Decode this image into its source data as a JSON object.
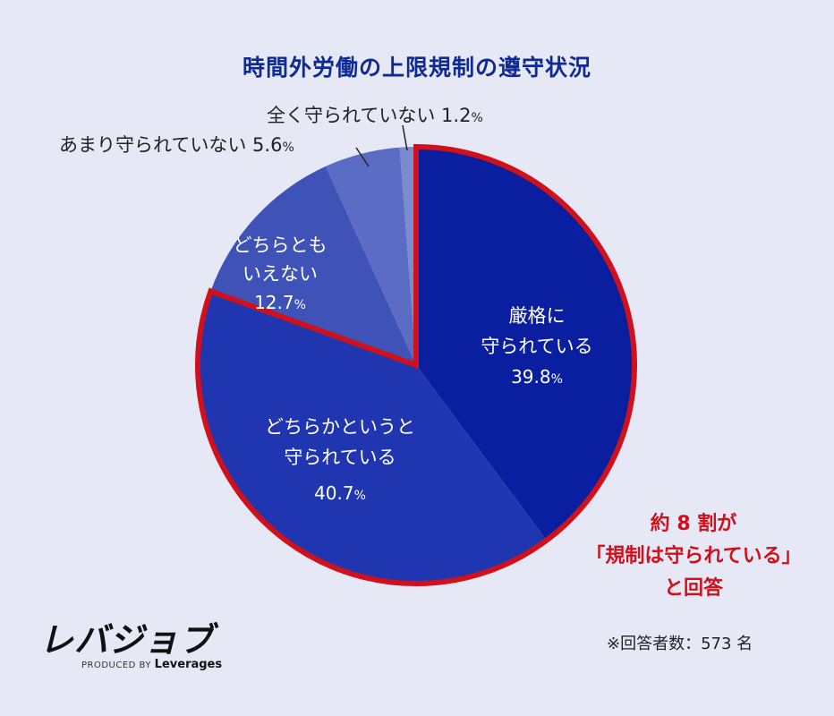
{
  "title": "時間外労働の上限規制の遵守状況",
  "chart_data": {
    "type": "pie",
    "title": "時間外労働の上限規制の遵守状況",
    "categories": [
      "厳格に守られている",
      "どちらかというと守られている",
      "どちらともいえない",
      "あまり守られていない",
      "全く守られていない"
    ],
    "values": [
      39.8,
      40.7,
      12.7,
      5.6,
      1.2
    ],
    "unit": "%",
    "colors": [
      "#0a1fa0",
      "#2036b0",
      "#3f52b8",
      "#5a6cc4",
      "#7b8bd0"
    ],
    "highlight": {
      "slices": [
        0,
        1
      ],
      "outline_color": "#d0101a"
    },
    "start_angle": "12 o'clock, clockwise",
    "respondents": 573
  },
  "labels": {
    "strict": {
      "line1": "厳格に",
      "line2": "守られている",
      "pct": "39.8"
    },
    "somewhat": {
      "line1": "どちらかというと",
      "line2": "守られている",
      "pct": "40.7"
    },
    "neither": {
      "line1": "どちらとも",
      "line2": "いえない",
      "pct": "12.7"
    },
    "rarely": {
      "text": "あまり守られていない 5.6"
    },
    "never": {
      "text": "全く守られていない 1.2"
    },
    "percent_sign": "%"
  },
  "callout": {
    "line1": "約 8 割が",
    "line2": "「規制は守られている」",
    "line3": "と回答"
  },
  "note": "※回答者数：573 名",
  "brand": {
    "logo": "レバジョブ",
    "produced_by": "PRODUCED BY",
    "company": "Leverages"
  }
}
